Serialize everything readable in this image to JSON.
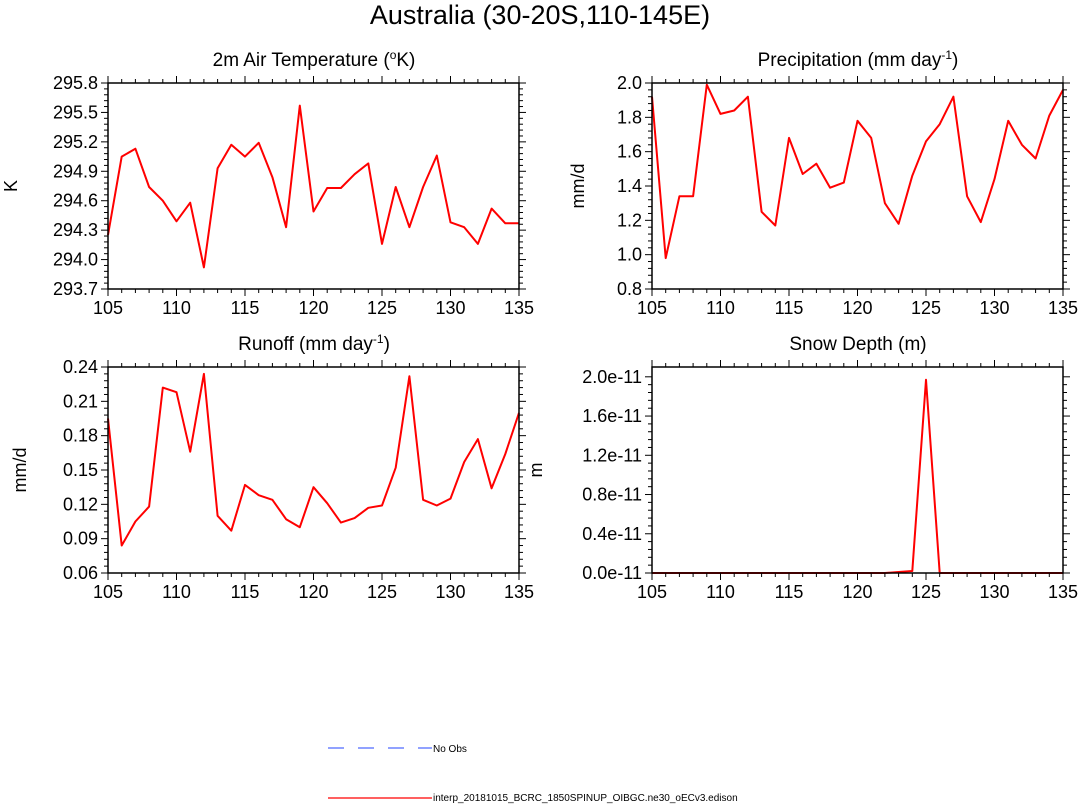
{
  "figure": {
    "title": "Australia (30-20S,110-145E)"
  },
  "chart_data": [
    {
      "type": "line",
      "title_main": "2m Air Temperature (",
      "title_sup": "o",
      "title_tail": "K)",
      "xlabel": "",
      "ylabel": "K",
      "xlim": [
        105,
        135
      ],
      "ylim": [
        293.7,
        295.8
      ],
      "x_ticks": [
        105,
        110,
        115,
        120,
        125,
        130,
        135
      ],
      "y_ticks": [
        "293.7",
        "294.0",
        "294.3",
        "294.6",
        "294.9",
        "295.2",
        "295.5",
        "295.8"
      ],
      "y_tick_values": [
        293.7,
        294.0,
        294.3,
        294.6,
        294.9,
        295.2,
        295.5,
        295.8
      ],
      "series": [
        {
          "color": "#ff0000",
          "x": [
            105,
            106,
            107,
            108,
            109,
            110,
            111,
            112,
            113,
            114,
            115,
            116,
            117,
            118,
            119,
            120,
            121,
            122,
            123,
            124,
            125,
            126,
            127,
            128,
            129,
            130,
            131,
            132,
            133,
            134,
            135
          ],
          "y": [
            294.25,
            295.05,
            295.13,
            294.74,
            294.6,
            294.39,
            294.58,
            293.92,
            294.93,
            295.17,
            295.05,
            295.19,
            294.84,
            294.33,
            295.57,
            294.49,
            294.73,
            294.73,
            294.87,
            294.98,
            294.16,
            294.74,
            294.33,
            294.74,
            295.06,
            294.38,
            294.33,
            294.16,
            294.52,
            294.37,
            294.37
          ]
        }
      ]
    },
    {
      "type": "line",
      "title_main": "Precipitation (mm day",
      "title_sup": "-1",
      "title_tail": ")",
      "xlabel": "",
      "ylabel": "mm/d",
      "xlim": [
        105,
        135
      ],
      "ylim": [
        0.8,
        2.0
      ],
      "x_ticks": [
        105,
        110,
        115,
        120,
        125,
        130,
        135
      ],
      "y_ticks": [
        "0.8",
        "1.0",
        "1.2",
        "1.4",
        "1.6",
        "1.8",
        "2.0"
      ],
      "y_tick_values": [
        0.8,
        1.0,
        1.2,
        1.4,
        1.6,
        1.8,
        2.0
      ],
      "series": [
        {
          "color": "#ff0000",
          "x": [
            105,
            106,
            107,
            108,
            109,
            110,
            111,
            112,
            113,
            114,
            115,
            116,
            117,
            118,
            119,
            120,
            121,
            122,
            123,
            124,
            125,
            126,
            127,
            128,
            129,
            130,
            131,
            132,
            133,
            134,
            135
          ],
          "y": [
            1.92,
            0.98,
            1.34,
            1.34,
            1.99,
            1.82,
            1.84,
            1.92,
            1.25,
            1.17,
            1.68,
            1.47,
            1.53,
            1.39,
            1.42,
            1.78,
            1.68,
            1.3,
            1.18,
            1.46,
            1.66,
            1.76,
            1.92,
            1.34,
            1.19,
            1.44,
            1.78,
            1.64,
            1.56,
            1.81,
            1.96
          ]
        }
      ]
    },
    {
      "type": "line",
      "title_main": "Runoff (mm day",
      "title_sup": "-1",
      "title_tail": ")",
      "xlabel": "",
      "ylabel": "mm/d",
      "xlim": [
        105,
        135
      ],
      "ylim": [
        0.06,
        0.24
      ],
      "x_ticks": [
        105,
        110,
        115,
        120,
        125,
        130,
        135
      ],
      "y_ticks": [
        "0.06",
        "0.09",
        "0.12",
        "0.15",
        "0.18",
        "0.21",
        "0.24"
      ],
      "y_tick_values": [
        0.06,
        0.09,
        0.12,
        0.15,
        0.18,
        0.21,
        0.24
      ],
      "series": [
        {
          "color": "#ff0000",
          "x": [
            105,
            106,
            107,
            108,
            109,
            110,
            111,
            112,
            113,
            114,
            115,
            116,
            117,
            118,
            119,
            120,
            121,
            122,
            123,
            124,
            125,
            126,
            127,
            128,
            129,
            130,
            131,
            132,
            133,
            134,
            135
          ],
          "y": [
            0.195,
            0.084,
            0.105,
            0.118,
            0.222,
            0.218,
            0.166,
            0.234,
            0.11,
            0.097,
            0.137,
            0.128,
            0.124,
            0.107,
            0.1,
            0.135,
            0.121,
            0.104,
            0.108,
            0.117,
            0.119,
            0.152,
            0.232,
            0.124,
            0.119,
            0.125,
            0.157,
            0.177,
            0.134,
            0.164,
            0.2
          ]
        }
      ]
    },
    {
      "type": "line",
      "title_main": "Snow Depth (m)",
      "title_sup": "",
      "title_tail": "",
      "xlabel": "",
      "ylabel": "m",
      "xlim": [
        105,
        135
      ],
      "ylim": [
        0,
        2.1e-11
      ],
      "x_ticks": [
        105,
        110,
        115,
        120,
        125,
        130,
        135
      ],
      "y_ticks": [
        "0.0e-11",
        "0.4e-11",
        "0.8e-11",
        "1.2e-11",
        "1.6e-11",
        "2.0e-11"
      ],
      "y_tick_values": [
        0,
        4e-12,
        8e-12,
        1.2e-11,
        1.6e-11,
        2e-11
      ],
      "series": [
        {
          "color": "#ff0000",
          "x": [
            105,
            106,
            107,
            108,
            109,
            110,
            111,
            112,
            113,
            114,
            115,
            116,
            117,
            118,
            119,
            120,
            121,
            122,
            123,
            124,
            125,
            126,
            127,
            128,
            129,
            130,
            131,
            132,
            133,
            134,
            135
          ],
          "y": [
            0,
            0,
            0,
            0,
            0,
            0,
            0,
            0,
            0,
            0,
            0,
            0,
            0,
            0,
            0,
            0,
            0,
            0,
            1e-13,
            2e-13,
            1.97e-11,
            0,
            0,
            0,
            0,
            0,
            0,
            0,
            0,
            0,
            0
          ]
        }
      ]
    }
  ],
  "legend": {
    "placement": "bottom-center",
    "items": [
      {
        "label": "No Obs",
        "color": "#4f6bff",
        "dash": true
      },
      {
        "label": "interp_20181015_BCRC_1850SPINUP_OIBGC.ne30_oECv3.edison",
        "color": "#ff0000",
        "dash": false
      }
    ]
  }
}
